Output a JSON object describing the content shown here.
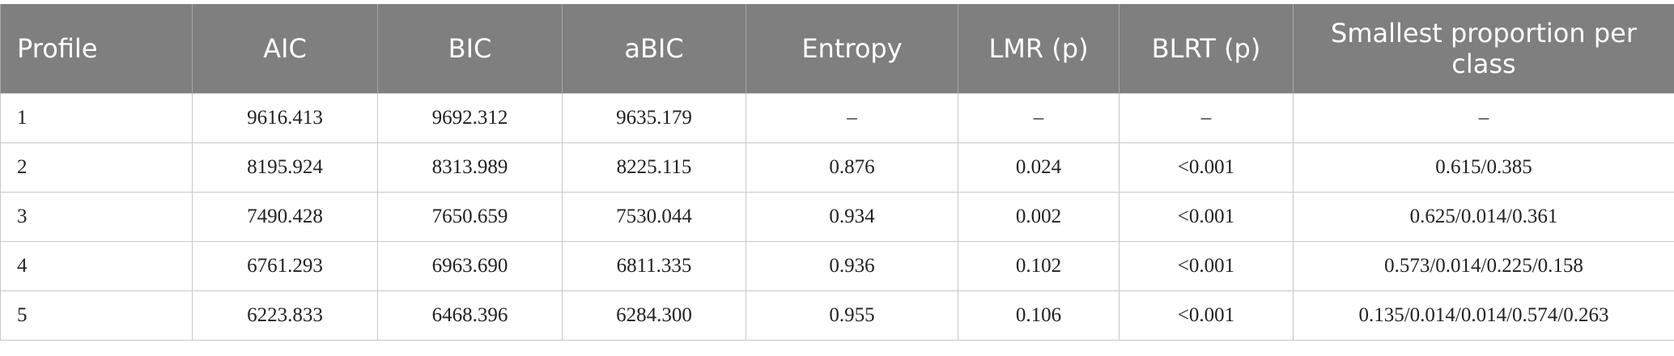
{
  "table": {
    "header": [
      "Profile",
      "AIC",
      "BIC",
      "aBIC",
      "Entropy",
      "LMR (p)",
      "BLRT (p)",
      "Smallest proportion per class"
    ],
    "rows": [
      [
        "1",
        "9616.413",
        "9692.312",
        "9635.179",
        "–",
        "–",
        "–",
        "–"
      ],
      [
        "2",
        "8195.924",
        "8313.989",
        "8225.115",
        "0.876",
        "0.024",
        "<0.001",
        "0.615/0.385"
      ],
      [
        "3",
        "7490.428",
        "7650.659",
        "7530.044",
        "0.934",
        "0.002",
        "<0.001",
        "0.625/0.014/0.361"
      ],
      [
        "4",
        "6761.293",
        "6963.690",
        "6811.335",
        "0.936",
        "0.102",
        "<0.001",
        "0.573/0.014/0.225/0.158"
      ],
      [
        "5",
        "6223.833",
        "6468.396",
        "6284.300",
        "0.955",
        "0.106",
        "<0.001",
        "0.135/0.014/0.014/0.574/0.263"
      ]
    ]
  }
}
